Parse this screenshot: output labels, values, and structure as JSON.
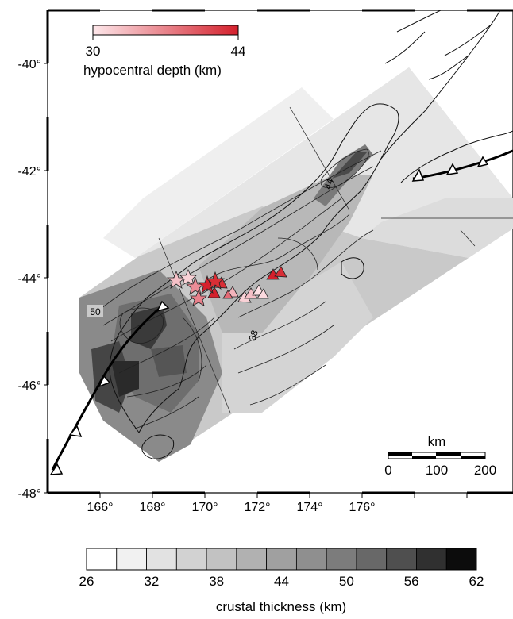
{
  "map": {
    "lat_labels": [
      "-40°",
      "-42°",
      "-44°",
      "-46°",
      "-48°"
    ],
    "lon_labels": [
      "166°",
      "168°",
      "170°",
      "172°",
      "174°",
      "176°"
    ],
    "contour_labels": [
      "44",
      "50",
      "38"
    ]
  },
  "depth_legend": {
    "min": "30",
    "max": "44",
    "label": "hypocentral depth (km)",
    "color_low": "#fde7ea",
    "color_high": "#d4202c"
  },
  "scale_bar": {
    "unit": "km",
    "ticks": [
      "0",
      "100",
      "200"
    ]
  },
  "thickness_legend": {
    "tick_labels": [
      "26",
      "32",
      "38",
      "44",
      "50",
      "56",
      "62"
    ],
    "label": "crustal thickness (km)",
    "colors": [
      "#ffffff",
      "#f1f1f1",
      "#e2e2e2",
      "#d2d2d2",
      "#c2c2c2",
      "#b1b1b1",
      "#a0a0a0",
      "#8f8f8f",
      "#7c7c7c",
      "#686868",
      "#4f4f4f",
      "#303030",
      "#0c0c0c"
    ]
  }
}
